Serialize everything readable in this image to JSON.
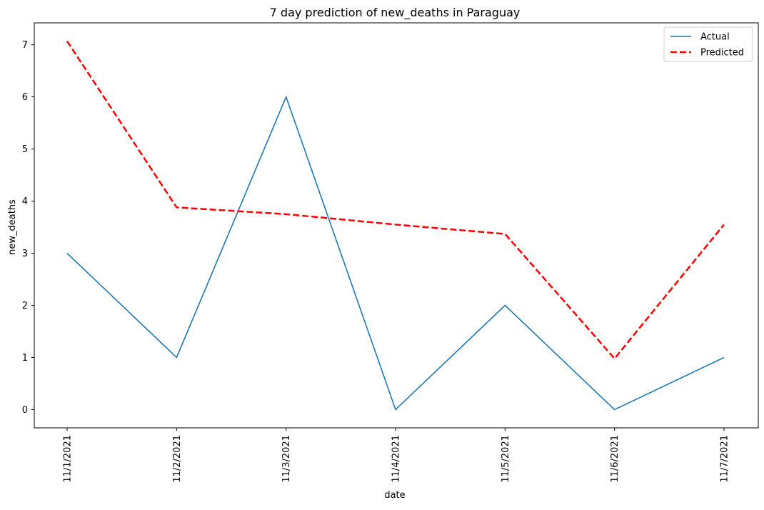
{
  "chart_data": {
    "type": "line",
    "title": "7 day prediction of new_deaths in Paraguay",
    "xlabel": "date",
    "ylabel": "new_deaths",
    "categories": [
      "11/1/2021",
      "11/2/2021",
      "11/3/2021",
      "11/4/2021",
      "11/5/2021",
      "11/6/2021",
      "11/7/2021"
    ],
    "series": [
      {
        "name": "Actual",
        "values": [
          3,
          1,
          6,
          0,
          2,
          0,
          1
        ],
        "color": "#1f77b4",
        "style": "solid"
      },
      {
        "name": "Predicted",
        "values": [
          7.07,
          3.88,
          3.75,
          3.55,
          3.37,
          0.98,
          3.55
        ],
        "color": "#ff0000",
        "style": "dashed"
      }
    ],
    "yticks": [
      0,
      1,
      2,
      3,
      4,
      5,
      6,
      7
    ],
    "ylim": [
      -0.35,
      7.42
    ],
    "grid": false,
    "legend_position": "top-right"
  }
}
